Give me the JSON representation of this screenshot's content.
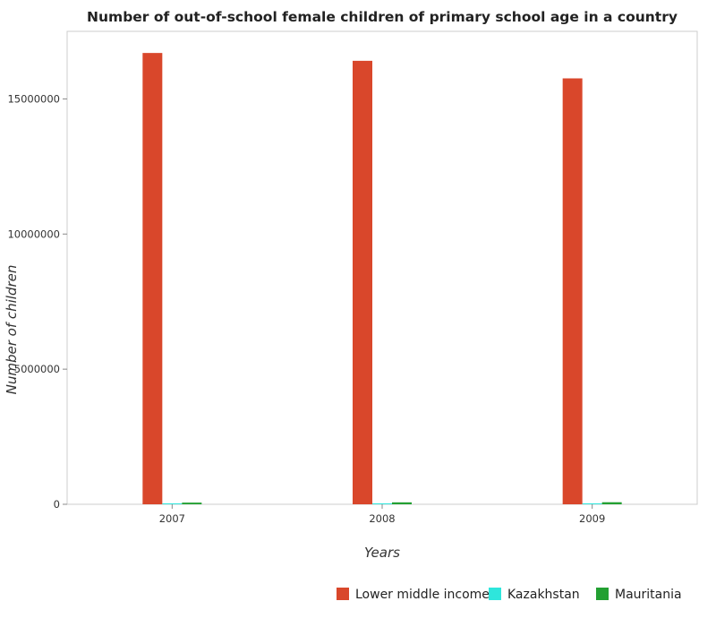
{
  "chart_data": {
    "type": "bar",
    "title": "Number of out-of-school female children of primary school age in a country",
    "xlabel": "Years",
    "ylabel": "Number of children",
    "categories": [
      "2007",
      "2008",
      "2009"
    ],
    "series": [
      {
        "name": "Lower middle income",
        "color": "#d9472b",
        "values": [
          16700000,
          16410000,
          15760000
        ]
      },
      {
        "name": "Kazakhstan",
        "color": "#2ee6dc",
        "values": [
          9000,
          8000,
          7500
        ]
      },
      {
        "name": "Mauritania",
        "color": "#23a032",
        "values": [
          62000,
          72000,
          76000
        ]
      }
    ],
    "ylim": [
      0,
      17500000
    ],
    "yticks": [
      0,
      5000000,
      10000000,
      15000000
    ],
    "ytick_labels": [
      "0",
      "5000000",
      "10000000",
      "15000000"
    ],
    "grid": false,
    "legend_position": "bottom-right"
  }
}
